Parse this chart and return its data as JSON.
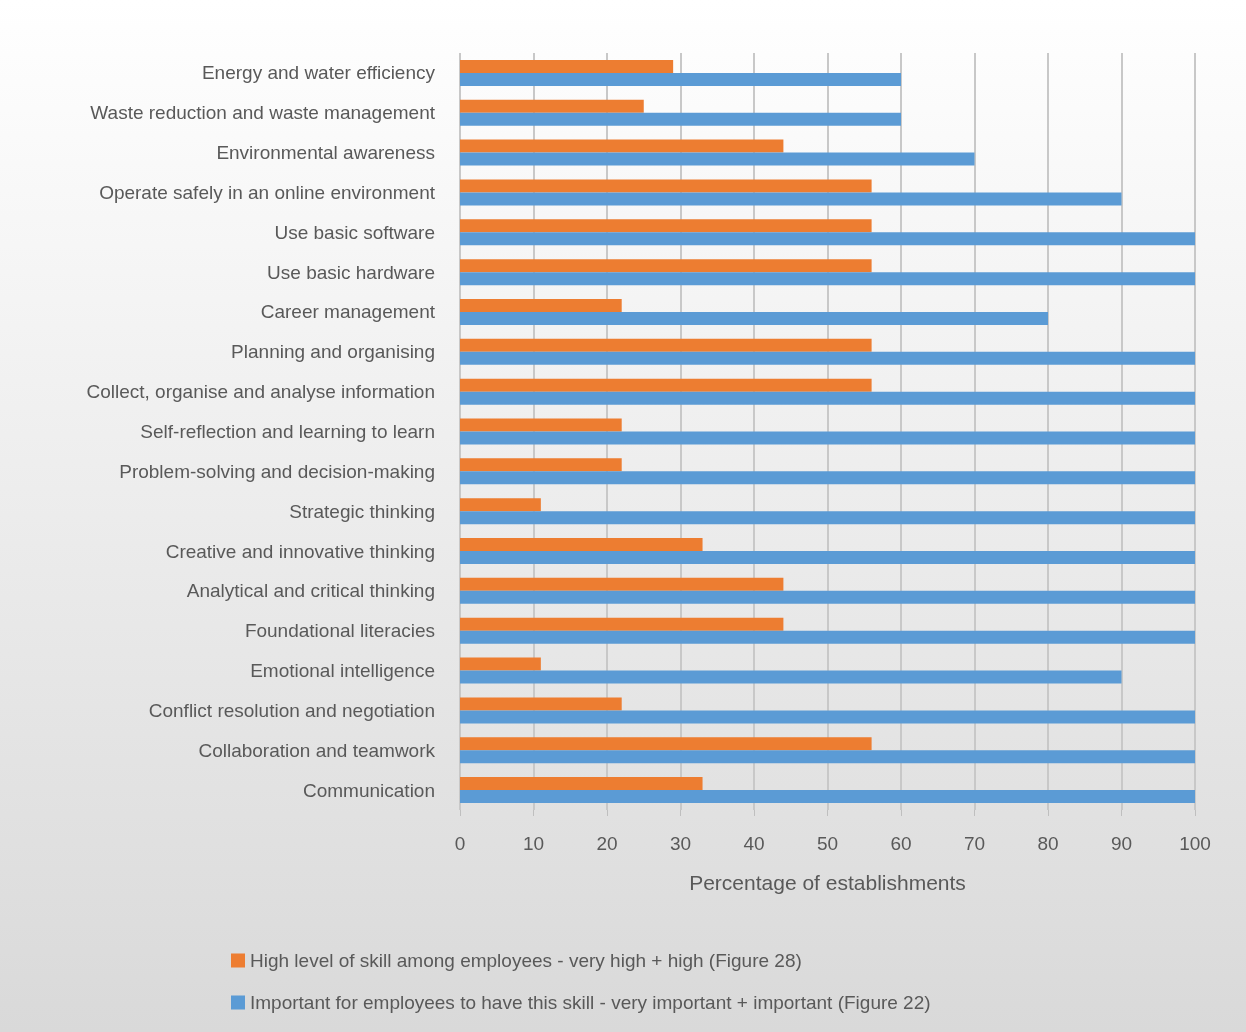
{
  "chart_data": {
    "type": "bar",
    "orientation": "horizontal",
    "categories": [
      "Energy and water efficiency",
      "Waste reduction and waste management",
      "Environmental awareness",
      "Operate safely in an online environment",
      "Use basic software",
      "Use basic hardware",
      "Career management",
      "Planning and organising",
      "Collect, organise and analyse information",
      "Self-reflection and learning to learn",
      "Problem-solving and decision-making",
      "Strategic thinking",
      "Creative and innovative thinking",
      "Analytical and critical thinking",
      "Foundational literacies",
      "Emotional intelligence",
      "Conflict resolution and negotiation",
      "Collaboration and teamwork",
      "Communication"
    ],
    "series": [
      {
        "name": "High level of skill among employees - very high + high (Figure 28)",
        "color": "#ed7d31",
        "values": [
          29,
          25,
          44,
          56,
          56,
          56,
          22,
          56,
          56,
          22,
          22,
          11,
          33,
          44,
          44,
          11,
          22,
          56,
          33
        ]
      },
      {
        "name": "Important for employees to have this skill - very important + important (Figure 22)",
        "color": "#5b9bd5",
        "values": [
          60,
          60,
          70,
          90,
          100,
          100,
          80,
          100,
          100,
          100,
          100,
          100,
          100,
          100,
          100,
          90,
          100,
          100,
          100
        ]
      }
    ],
    "xlim": [
      0,
      100
    ],
    "xticks": [
      0,
      10,
      20,
      30,
      40,
      50,
      60,
      70,
      80,
      90,
      100
    ],
    "xlabel": "Percentage of establishments",
    "grid": "x",
    "legend": "bottom"
  }
}
